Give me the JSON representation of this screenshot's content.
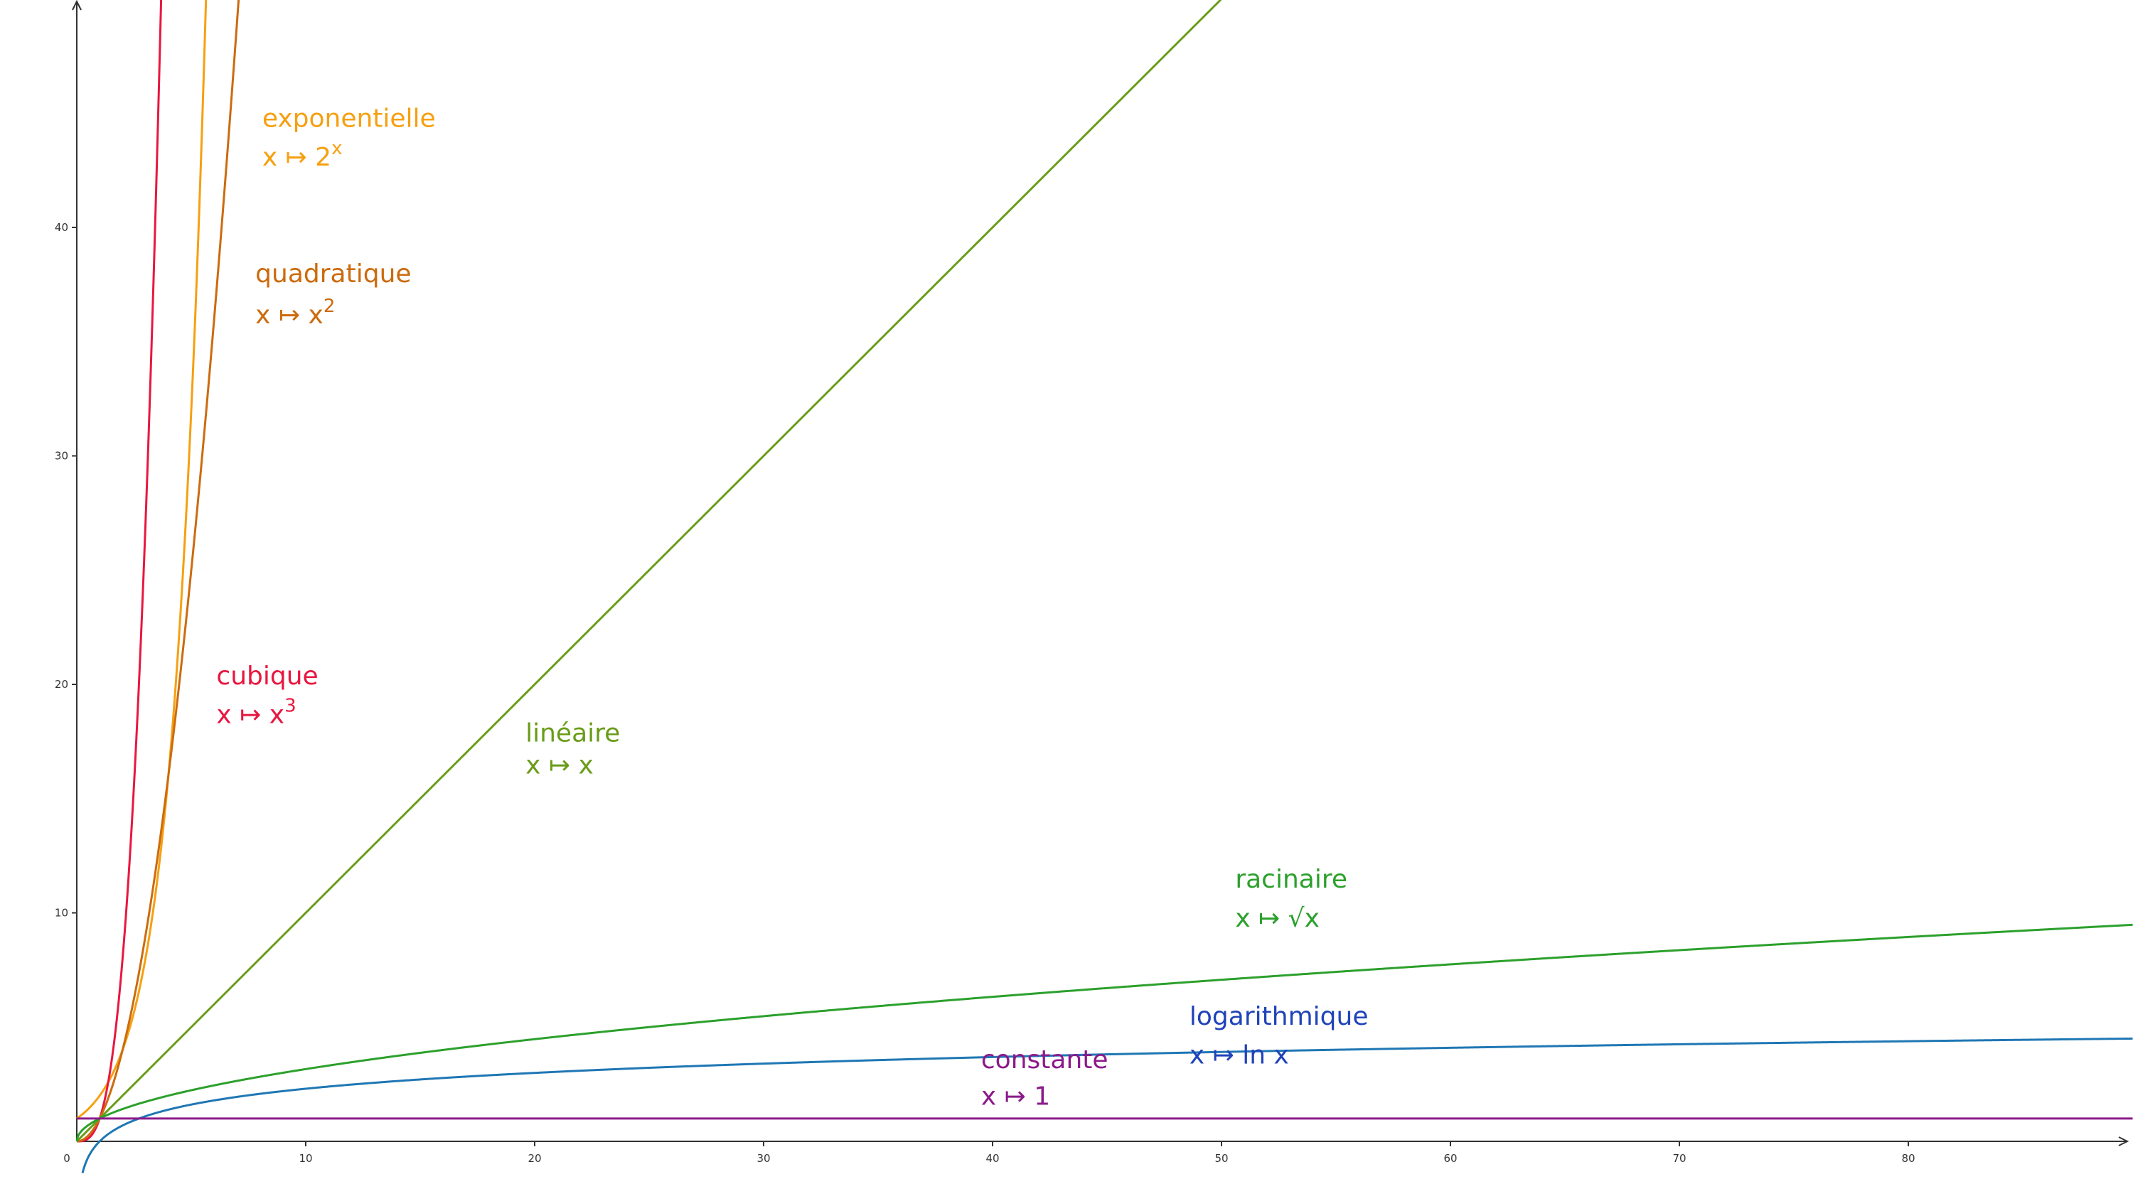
{
  "chart_data": {
    "type": "line",
    "title": "",
    "xlabel": "",
    "ylabel": "",
    "xlim": [
      -0.3,
      89.8
    ],
    "ylim": [
      -0.2,
      49.8
    ],
    "grid": false,
    "x_ticks": [
      "0",
      "10",
      "20",
      "30",
      "40",
      "50",
      "60",
      "70",
      "80"
    ],
    "y_ticks": [
      "10",
      "20",
      "30",
      "40"
    ],
    "series": [
      {
        "name": "exponentielle",
        "formula": "x ↦ 2^x",
        "fn": "exp2",
        "color": "#f5a011",
        "label": {
          "x": 8.1,
          "y_name": 44.4,
          "y_map": 42.7
        },
        "points": [
          [
            0,
            1
          ],
          [
            1,
            2
          ],
          [
            2,
            4
          ],
          [
            3,
            8
          ],
          [
            4,
            16
          ],
          [
            5,
            32
          ],
          [
            5.6,
            48.5
          ]
        ]
      },
      {
        "name": "cubique",
        "formula": "x ↦ x^3",
        "fn": "cube",
        "color": "#e8173f",
        "label": {
          "x": 6.1,
          "y_name": 20.0,
          "y_map": 18.3
        },
        "points": [
          [
            0,
            0
          ],
          [
            1,
            1
          ],
          [
            2,
            8
          ],
          [
            3,
            27
          ],
          [
            3.5,
            42.9
          ],
          [
            3.65,
            48.6
          ]
        ]
      },
      {
        "name": "quadratique",
        "formula": "x ↦ x^2",
        "fn": "square",
        "color": "#cc6b0e",
        "label": {
          "x": 7.8,
          "y_name": 37.6,
          "y_map": 35.8
        },
        "points": [
          [
            0,
            0
          ],
          [
            2,
            4
          ],
          [
            4,
            16
          ],
          [
            6,
            36
          ],
          [
            6.95,
            48.3
          ]
        ]
      },
      {
        "name": "linéaire",
        "formula": "x ↦ x",
        "fn": "identity",
        "color": "#6a9c19",
        "label": {
          "x": 19.6,
          "y_name": 17.5,
          "y_map": 16.1
        },
        "points": [
          [
            0,
            0
          ],
          [
            25,
            25
          ],
          [
            50,
            50
          ]
        ]
      },
      {
        "name": "racinaire",
        "formula": "x ↦ √x",
        "fn": "sqrt",
        "color": "#2ca02c",
        "label": {
          "x": 50.6,
          "y_name": 11.1,
          "y_map": 9.4
        },
        "points": [
          [
            0,
            0
          ],
          [
            1,
            1
          ],
          [
            9,
            3
          ],
          [
            25,
            5
          ],
          [
            49,
            7
          ],
          [
            81,
            9
          ],
          [
            89.8,
            9.5
          ]
        ]
      },
      {
        "name": "logarithmique",
        "formula": "x ↦ ln x",
        "fn": "log",
        "color": "#1f77b4",
        "label": {
          "x": 48.6,
          "y_name": 5.1,
          "y_map": 3.4
        },
        "points": [
          [
            1,
            0
          ],
          [
            10,
            2.3
          ],
          [
            30,
            3.4
          ],
          [
            60,
            4.1
          ],
          [
            89.8,
            4.5
          ]
        ]
      },
      {
        "name": "constante",
        "formula": "x ↦ 1",
        "fn": "const1",
        "color": "#8b1a8b",
        "label": {
          "x": 39.5,
          "y_name": 3.2,
          "y_map": 1.6
        },
        "points": [
          [
            0,
            1
          ],
          [
            89.8,
            1
          ]
        ]
      }
    ],
    "label_colors": {
      "exponentielle": "#f5a011",
      "cubique": "#e8173f",
      "quadratique": "#cc6b0e",
      "linéaire": "#6a9c19",
      "racinaire": "#2ca02c",
      "logarithmique": "#1f43b8",
      "constante": "#8b1a8b"
    }
  }
}
